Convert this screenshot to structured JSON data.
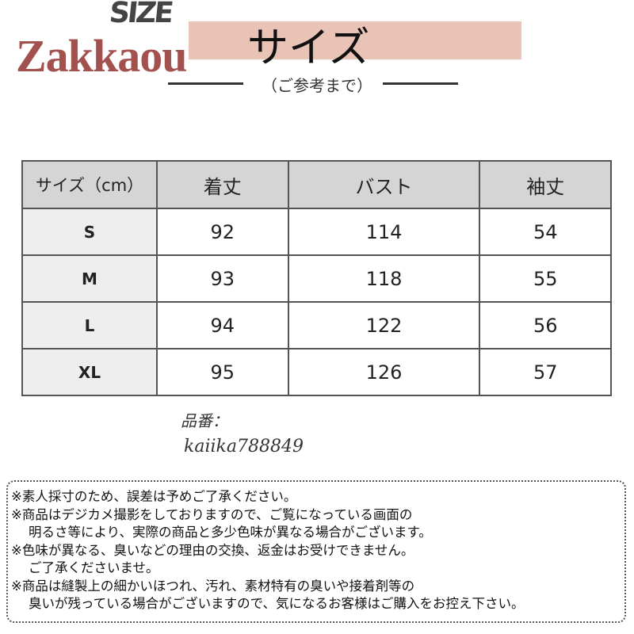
{
  "header": {
    "size_logo": "SIZE",
    "brand_watermark": "Zakkaou",
    "title": "サイズ",
    "subtitle": "（ご参考まで）"
  },
  "table": {
    "headers": [
      "サイズ（cm）",
      "着丈",
      "バスト",
      "袖丈"
    ],
    "rows": [
      [
        "S",
        "92",
        "114",
        "54"
      ],
      [
        "M",
        "93",
        "118",
        "55"
      ],
      [
        "L",
        "94",
        "122",
        "56"
      ],
      [
        "XL",
        "95",
        "126",
        "57"
      ]
    ]
  },
  "notes": [
    "※素人採寸のため、誤差は予めご了承ください。",
    "※商品はデジカメ撮影をしておりますので、ご覧になっている画面の",
    "明るさ等により、実際の商品と多少色味が異なる場合がございます。",
    "※色味が異なる、臭いなどの理由の交換、返金はお受けできません。",
    "ご了承くださいませ。",
    "※商品は縫製上の細かいほつれ、汚れ、素材特有の臭いや接着剤等の",
    "臭いが残っている場合がございますので、気になるお客様はご購入をお控え下さい。"
  ],
  "watermark": {
    "label": "品番：",
    "code": "kaiika788849"
  },
  "colors": {
    "band": "#e9c4b6",
    "brand": "#9a3f3c",
    "header_bg": "#d5d5d5"
  }
}
